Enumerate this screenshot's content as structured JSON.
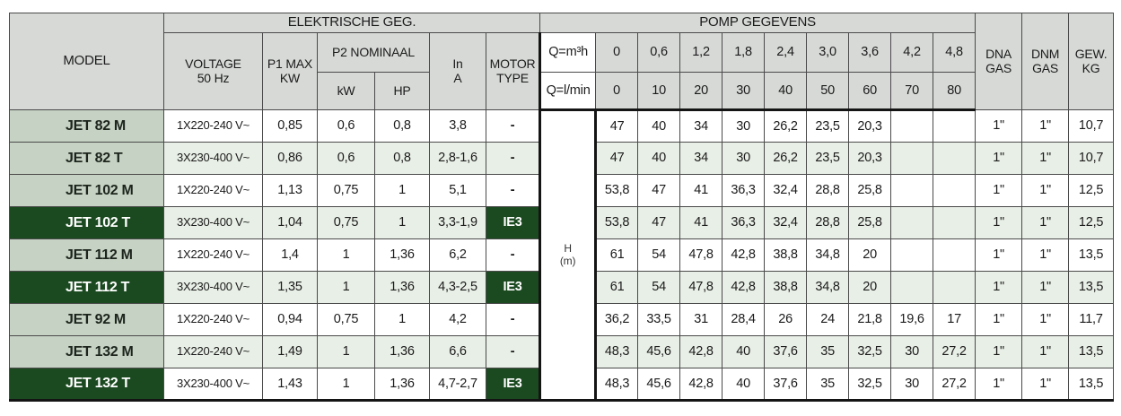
{
  "colors": {
    "header_bg": "#d6d9d6",
    "model_cell_bg": "#c6d2c3",
    "dark_green": "#1b4a20",
    "tint_row_bg": "#e8efe6",
    "border": "#4a4a4a",
    "thick_border": "#141414"
  },
  "header": {
    "model_label": "MODEL",
    "electrical_group": "ELEKTRISCHE GEG.",
    "pump_group": "POMP GEGEVENS",
    "voltage_l1": "VOLTAGE",
    "voltage_l2": "50 Hz",
    "p1_l1": "P1 MAX",
    "p1_l2": "KW",
    "p2_label": "P2 NOMINAAL",
    "p2_kw": "kW",
    "p2_hp": "HP",
    "in_l1": "In",
    "in_l2": "A",
    "motor_l1": "MOTOR",
    "motor_l2": "TYPE",
    "q_m3h_label": "Q=m³h",
    "q_lmin_label": "Q=l/min",
    "flow_m3h": [
      "0",
      "0,6",
      "1,2",
      "1,8",
      "2,4",
      "3,0",
      "3,6",
      "4,2",
      "4,8"
    ],
    "flow_lmin": [
      "0",
      "10",
      "20",
      "30",
      "40",
      "50",
      "60",
      "70",
      "80"
    ],
    "dna_l1": "DNA",
    "dna_l2": "GAS",
    "dnm_l1": "DNM",
    "dnm_l2": "GAS",
    "gew_l1": "GEW.",
    "gew_l2": "KG"
  },
  "h_axis": {
    "l1": "H",
    "l2": "(m)"
  },
  "rows": [
    {
      "model": "JET 82 M",
      "voltage": "1X220-240 V~",
      "p1_max_kw": "0,85",
      "p2_kw": "0,6",
      "p2_hp": "0,8",
      "in_a": "3,8",
      "motor_type": "-",
      "dark": false,
      "tint": false,
      "h_values": [
        "47",
        "40",
        "34",
        "30",
        "26,2",
        "23,5",
        "20,3",
        "",
        ""
      ],
      "dna_gas": "1\"",
      "dnm_gas": "1\"",
      "gew_kg": "10,7"
    },
    {
      "model": "JET 82 T",
      "voltage": "3X230-400 V~",
      "p1_max_kw": "0,86",
      "p2_kw": "0,6",
      "p2_hp": "0,8",
      "in_a": "2,8-1,6",
      "motor_type": "-",
      "dark": false,
      "tint": true,
      "h_values": [
        "47",
        "40",
        "34",
        "30",
        "26,2",
        "23,5",
        "20,3",
        "",
        ""
      ],
      "dna_gas": "1\"",
      "dnm_gas": "1\"",
      "gew_kg": "10,7"
    },
    {
      "model": "JET 102 M",
      "voltage": "1X220-240 V~",
      "p1_max_kw": "1,13",
      "p2_kw": "0,75",
      "p2_hp": "1",
      "in_a": "5,1",
      "motor_type": "-",
      "dark": false,
      "tint": false,
      "h_values": [
        "53,8",
        "47",
        "41",
        "36,3",
        "32,4",
        "28,8",
        "25,8",
        "",
        ""
      ],
      "dna_gas": "1\"",
      "dnm_gas": "1\"",
      "gew_kg": "12,5"
    },
    {
      "model": "JET 102 T",
      "voltage": "3X230-400 V~",
      "p1_max_kw": "1,04",
      "p2_kw": "0,75",
      "p2_hp": "1",
      "in_a": "3,3-1,9",
      "motor_type": "IE3",
      "dark": true,
      "tint": true,
      "h_values": [
        "53,8",
        "47",
        "41",
        "36,3",
        "32,4",
        "28,8",
        "25,8",
        "",
        ""
      ],
      "dna_gas": "1\"",
      "dnm_gas": "1\"",
      "gew_kg": "12,5"
    },
    {
      "model": "JET 112 M",
      "voltage": "1X220-240 V~",
      "p1_max_kw": "1,4",
      "p2_kw": "1",
      "p2_hp": "1,36",
      "in_a": "6,2",
      "motor_type": "-",
      "dark": false,
      "tint": false,
      "h_values": [
        "61",
        "54",
        "47,8",
        "42,8",
        "38,8",
        "34,8",
        "20",
        "",
        ""
      ],
      "dna_gas": "1\"",
      "dnm_gas": "1\"",
      "gew_kg": "13,5"
    },
    {
      "model": "JET 112 T",
      "voltage": "3X230-400 V~",
      "p1_max_kw": "1,35",
      "p2_kw": "1",
      "p2_hp": "1,36",
      "in_a": "4,3-2,5",
      "motor_type": "IE3",
      "dark": true,
      "tint": true,
      "h_values": [
        "61",
        "54",
        "47,8",
        "42,8",
        "38,8",
        "34,8",
        "20",
        "",
        ""
      ],
      "dna_gas": "1\"",
      "dnm_gas": "1\"",
      "gew_kg": "13,5"
    },
    {
      "model": "JET 92 M",
      "voltage": "1X220-240 V~",
      "p1_max_kw": "0,94",
      "p2_kw": "0,75",
      "p2_hp": "1",
      "in_a": "4,2",
      "motor_type": "-",
      "dark": false,
      "tint": false,
      "h_values": [
        "36,2",
        "33,5",
        "31",
        "28,4",
        "26",
        "24",
        "21,8",
        "19,6",
        "17"
      ],
      "dna_gas": "1\"",
      "dnm_gas": "1\"",
      "gew_kg": "11,7"
    },
    {
      "model": "JET 132 M",
      "voltage": "1X220-240 V~",
      "p1_max_kw": "1,49",
      "p2_kw": "1",
      "p2_hp": "1,36",
      "in_a": "6,6",
      "motor_type": "-",
      "dark": false,
      "tint": true,
      "h_values": [
        "48,3",
        "45,6",
        "42,8",
        "40",
        "37,6",
        "35",
        "32,5",
        "30",
        "27,2"
      ],
      "dna_gas": "1\"",
      "dnm_gas": "1\"",
      "gew_kg": "13,5"
    },
    {
      "model": "JET 132 T",
      "voltage": "3X230-400 V~",
      "p1_max_kw": "1,43",
      "p2_kw": "1",
      "p2_hp": "1,36",
      "in_a": "4,7-2,7",
      "motor_type": "IE3",
      "dark": true,
      "tint": false,
      "h_values": [
        "48,3",
        "45,6",
        "42,8",
        "40",
        "37,6",
        "35",
        "32,5",
        "30",
        "27,2"
      ],
      "dna_gas": "1\"",
      "dnm_gas": "1\"",
      "gew_kg": "13,5"
    }
  ]
}
